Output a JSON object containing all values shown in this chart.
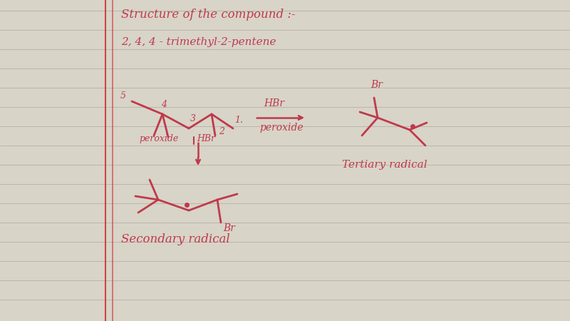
{
  "bg_color": "#d8d4c8",
  "page_color": "#f0eeea",
  "line_color": "#a8a098",
  "red_color": "#c0394b",
  "margin_color": "#d03535",
  "title": "Structure of the compound :-",
  "subtitle": "2, 4, 4 - trimethyl-2-pentene",
  "arrow_label1": "HBr",
  "arrow_label2": "peroxide",
  "side_label1": "peroxide",
  "side_label2": "HBr",
  "product1_label": "Br",
  "product1_type": "Tertiary radical",
  "product2_label": "Br",
  "product2_type": "Secondary radical",
  "figsize": [
    8.0,
    4.5
  ],
  "dpi": 100
}
